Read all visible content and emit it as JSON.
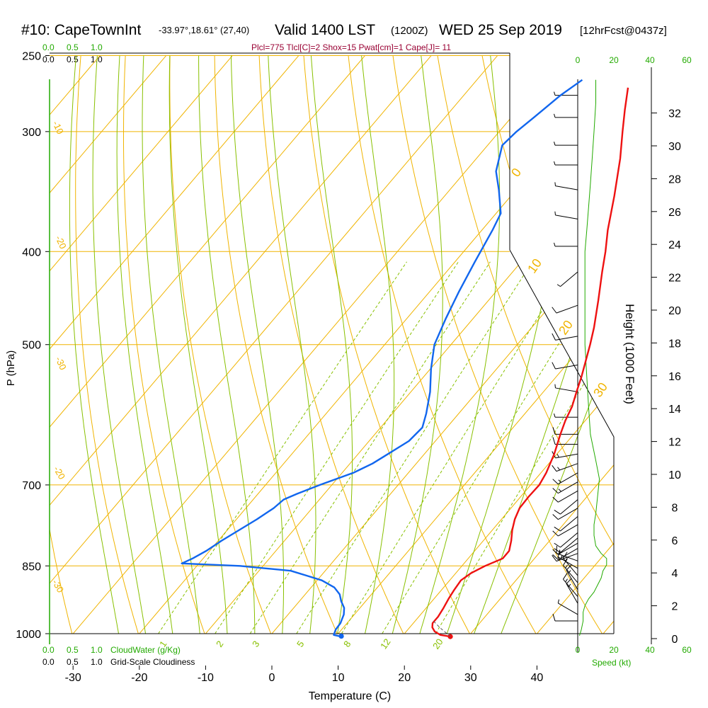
{
  "header": {
    "station": "#10: CapeTownInt",
    "location": "-33.97°,18.61° (27,40)",
    "valid": "Valid 1400 LST",
    "utc": "(1200Z)",
    "date": "WED 25 Sep 2019",
    "forecast": "[12hrFcst@0437z]",
    "indices": "Plcl=775 Tlcl[C]=2 Shox=15 Pwat[cm]=1 Cape[J]= 11"
  },
  "colors": {
    "temperature": "#ee1111",
    "dewpoint": "#1166ee",
    "isotherm": "#f0b400",
    "dry_adiabat": "#f0b400",
    "moist_adiabat": "#88c000",
    "mixing_ratio": "#88c000",
    "axis_green": "#22aa00",
    "indices": "#990033"
  },
  "legends": {
    "cloud_scale_green": [
      "0.0",
      "0.5",
      "1.0"
    ],
    "cloud_scale_black": [
      "0.0",
      "0.5",
      "1.0"
    ],
    "cloud_water_label": "CloudWater (g/Kg)",
    "cloudiness_label": "Grid-Scale Cloudiness",
    "speed_label": "Speed (kt)"
  },
  "chart_data": {
    "type": "line",
    "subtype": "skew-t",
    "xlabel": "Temperature (C)",
    "ylabel": "P (hPa)",
    "y2label": "Height (1000 Feet)",
    "x_ticks": [
      -30,
      -20,
      -10,
      0,
      10,
      20,
      30,
      40
    ],
    "y_ticks": [
      250,
      300,
      400,
      500,
      700,
      850,
      1000
    ],
    "y_log": true,
    "y_range": [
      250,
      1050
    ],
    "height_ticks": [
      0,
      2,
      4,
      6,
      8,
      10,
      12,
      14,
      16,
      18,
      20,
      22,
      24,
      26,
      28,
      30,
      32
    ],
    "speed_ticks": [
      "0",
      "20",
      "40",
      "60"
    ],
    "isotherm_labels": [
      "0",
      "10",
      "20",
      "30",
      "-10",
      "-20",
      "-30"
    ],
    "dry_adiabat_labels": [
      "10",
      "0",
      "-10",
      "-20",
      "-30"
    ],
    "mixing_ratio_labels": [
      "1",
      "2",
      "3",
      "5",
      "8",
      "12",
      "20"
    ],
    "series": [
      {
        "key": "temperature",
        "points": [
          {
            "p": 1007,
            "t": 27.3
          },
          {
            "p": 1003,
            "t": 25.6
          },
          {
            "p": 995,
            "t": 24.3
          },
          {
            "p": 985,
            "t": 23.4
          },
          {
            "p": 975,
            "t": 22.9
          },
          {
            "p": 960,
            "t": 22.9
          },
          {
            "p": 940,
            "t": 22.6
          },
          {
            "p": 920,
            "t": 22.2
          },
          {
            "p": 900,
            "t": 21.9
          },
          {
            "p": 880,
            "t": 21.7
          },
          {
            "p": 865,
            "t": 22.3
          },
          {
            "p": 850,
            "t": 23.5
          },
          {
            "p": 835,
            "t": 25.2
          },
          {
            "p": 820,
            "t": 25.2
          },
          {
            "p": 800,
            "t": 24.2
          },
          {
            "p": 780,
            "t": 23.0
          },
          {
            "p": 760,
            "t": 22.0
          },
          {
            "p": 740,
            "t": 21.3
          },
          {
            "p": 720,
            "t": 21.2
          },
          {
            "p": 700,
            "t": 21.3
          },
          {
            "p": 680,
            "t": 20.8
          },
          {
            "p": 650,
            "t": 19.6
          },
          {
            "p": 620,
            "t": 18.0
          },
          {
            "p": 600,
            "t": 17.0
          },
          {
            "p": 580,
            "t": 16.2
          },
          {
            "p": 560,
            "t": 15.0
          },
          {
            "p": 540,
            "t": 13.8
          },
          {
            "p": 500,
            "t": 11.0
          },
          {
            "p": 480,
            "t": 9.4
          },
          {
            "p": 450,
            "t": 6.6
          },
          {
            "p": 420,
            "t": 3.5
          },
          {
            "p": 400,
            "t": 1.4
          },
          {
            "p": 380,
            "t": -1.0
          },
          {
            "p": 350,
            "t": -4.4
          },
          {
            "p": 320,
            "t": -8.3
          },
          {
            "p": 300,
            "t": -11.4
          },
          {
            "p": 285,
            "t": -13.8
          },
          {
            "p": 270,
            "t": -16.2
          }
        ]
      },
      {
        "key": "dewpoint",
        "points": [
          {
            "p": 1007,
            "t": 10.8
          },
          {
            "p": 1003,
            "t": 9.5
          },
          {
            "p": 990,
            "t": 9.1
          },
          {
            "p": 975,
            "t": 9.0
          },
          {
            "p": 955,
            "t": 8.4
          },
          {
            "p": 940,
            "t": 7.6
          },
          {
            "p": 925,
            "t": 6.3
          },
          {
            "p": 910,
            "t": 5.2
          },
          {
            "p": 895,
            "t": 3.5
          },
          {
            "p": 880,
            "t": 0.7
          },
          {
            "p": 870,
            "t": -2.2
          },
          {
            "p": 860,
            "t": -5.2
          },
          {
            "p": 850,
            "t": -13.5
          },
          {
            "p": 845,
            "t": -22.6
          },
          {
            "p": 835,
            "t": -21.6
          },
          {
            "p": 820,
            "t": -20.5
          },
          {
            "p": 800,
            "t": -19.5
          },
          {
            "p": 760,
            "t": -16.9
          },
          {
            "p": 740,
            "t": -15.8
          },
          {
            "p": 725,
            "t": -15.4
          },
          {
            "p": 715,
            "t": -14.1
          },
          {
            "p": 700,
            "t": -11.8
          },
          {
            "p": 680,
            "t": -8.3
          },
          {
            "p": 665,
            "t": -6.6
          },
          {
            "p": 650,
            "t": -5.5
          },
          {
            "p": 630,
            "t": -4.0
          },
          {
            "p": 610,
            "t": -3.7
          },
          {
            "p": 590,
            "t": -4.9
          },
          {
            "p": 560,
            "t": -7.1
          },
          {
            "p": 530,
            "t": -9.9
          },
          {
            "p": 500,
            "t": -12.5
          },
          {
            "p": 470,
            "t": -14.1
          },
          {
            "p": 440,
            "t": -15.6
          },
          {
            "p": 410,
            "t": -17.0
          },
          {
            "p": 380,
            "t": -18.4
          },
          {
            "p": 365,
            "t": -19.3
          },
          {
            "p": 345,
            "t": -22.6
          },
          {
            "p": 330,
            "t": -25.4
          },
          {
            "p": 310,
            "t": -27.8
          },
          {
            "p": 300,
            "t": -27.4
          },
          {
            "p": 290,
            "t": -26.6
          },
          {
            "p": 275,
            "t": -25.4
          },
          {
            "p": 265,
            "t": -24.1
          }
        ]
      }
    ],
    "surface_markers": [
      {
        "key": "temperature",
        "p": 1007,
        "t": 27.3
      },
      {
        "key": "dewpoint",
        "p": 1006,
        "t": 10.8
      }
    ],
    "wind_speed_kt": [
      {
        "p": 1005,
        "v": 1
      },
      {
        "p": 990,
        "v": 2
      },
      {
        "p": 970,
        "v": 3
      },
      {
        "p": 950,
        "v": 3
      },
      {
        "p": 935,
        "v": 4
      },
      {
        "p": 920,
        "v": 6
      },
      {
        "p": 905,
        "v": 9
      },
      {
        "p": 890,
        "v": 11
      },
      {
        "p": 875,
        "v": 13
      },
      {
        "p": 860,
        "v": 14
      },
      {
        "p": 848,
        "v": 16
      },
      {
        "p": 835,
        "v": 16
      },
      {
        "p": 825,
        "v": 13
      },
      {
        "p": 810,
        "v": 10
      },
      {
        "p": 790,
        "v": 9
      },
      {
        "p": 770,
        "v": 9
      },
      {
        "p": 750,
        "v": 10
      },
      {
        "p": 720,
        "v": 11
      },
      {
        "p": 690,
        "v": 12
      },
      {
        "p": 660,
        "v": 10
      },
      {
        "p": 620,
        "v": 7
      },
      {
        "p": 580,
        "v": 6
      },
      {
        "p": 540,
        "v": 5
      },
      {
        "p": 500,
        "v": 4
      },
      {
        "p": 460,
        "v": 4
      },
      {
        "p": 430,
        "v": 4
      },
      {
        "p": 400,
        "v": 4
      },
      {
        "p": 380,
        "v": 5
      },
      {
        "p": 360,
        "v": 6
      },
      {
        "p": 340,
        "v": 7
      },
      {
        "p": 320,
        "v": 8
      },
      {
        "p": 300,
        "v": 9
      },
      {
        "p": 280,
        "v": 10
      },
      {
        "p": 265,
        "v": 10
      }
    ],
    "wind_barbs_kt": [
      {
        "p": 990,
        "spd": 3,
        "dir": 180
      },
      {
        "p": 970,
        "spd": 10,
        "dir": 270
      },
      {
        "p": 955,
        "spd": 5,
        "dir": 300
      },
      {
        "p": 930,
        "spd": 15,
        "dir": 330
      },
      {
        "p": 915,
        "spd": 15,
        "dir": 320
      },
      {
        "p": 900,
        "spd": 15,
        "dir": 330
      },
      {
        "p": 885,
        "spd": 15,
        "dir": 320
      },
      {
        "p": 870,
        "spd": 15,
        "dir": 320
      },
      {
        "p": 855,
        "spd": 15,
        "dir": 300
      },
      {
        "p": 840,
        "spd": 15,
        "dir": 290
      },
      {
        "p": 825,
        "spd": 15,
        "dir": 250
      },
      {
        "p": 815,
        "spd": 10,
        "dir": 240
      },
      {
        "p": 805,
        "spd": 10,
        "dir": 240
      },
      {
        "p": 795,
        "spd": 10,
        "dir": 230
      },
      {
        "p": 785,
        "spd": 10,
        "dir": 230
      },
      {
        "p": 770,
        "spd": 10,
        "dir": 240
      },
      {
        "p": 755,
        "spd": 10,
        "dir": 230
      },
      {
        "p": 740,
        "spd": 10,
        "dir": 240
      },
      {
        "p": 725,
        "spd": 10,
        "dir": 230
      },
      {
        "p": 710,
        "spd": 10,
        "dir": 240
      },
      {
        "p": 695,
        "spd": 15,
        "dir": 240
      },
      {
        "p": 680,
        "spd": 15,
        "dir": 240
      },
      {
        "p": 665,
        "spd": 15,
        "dir": 250
      },
      {
        "p": 650,
        "spd": 15,
        "dir": 260
      },
      {
        "p": 635,
        "spd": 10,
        "dir": 270
      },
      {
        "p": 620,
        "spd": 10,
        "dir": 270
      },
      {
        "p": 595,
        "spd": 5,
        "dir": 270
      },
      {
        "p": 560,
        "spd": 5,
        "dir": 280
      },
      {
        "p": 525,
        "spd": 10,
        "dir": 260
      },
      {
        "p": 490,
        "spd": 10,
        "dir": 260
      },
      {
        "p": 455,
        "spd": 10,
        "dir": 250
      },
      {
        "p": 420,
        "spd": 5,
        "dir": 230
      },
      {
        "p": 395,
        "spd": 5,
        "dir": 270
      },
      {
        "p": 370,
        "spd": 5,
        "dir": 280
      },
      {
        "p": 345,
        "spd": 5,
        "dir": 280
      },
      {
        "p": 325,
        "spd": 5,
        "dir": 270
      },
      {
        "p": 310,
        "spd": 5,
        "dir": 270
      },
      {
        "p": 290,
        "spd": 5,
        "dir": 270
      },
      {
        "p": 275,
        "spd": 5,
        "dir": 270
      }
    ]
  }
}
